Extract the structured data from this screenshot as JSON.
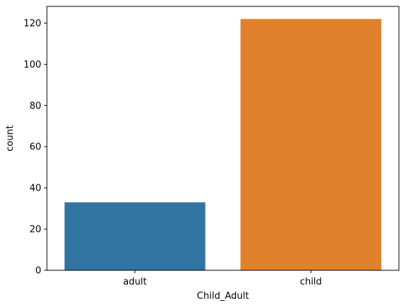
{
  "chart_data": {
    "type": "bar",
    "title": "",
    "xlabel": "Child_Adult",
    "ylabel": "count",
    "categories": [
      "adult",
      "child"
    ],
    "values": [
      33,
      122
    ],
    "colors": [
      "#3274a1",
      "#e1812c"
    ],
    "ylim": [
      0,
      128.1
    ],
    "yticks": [
      0,
      20,
      40,
      60,
      80,
      100,
      120
    ],
    "grid": false
  }
}
